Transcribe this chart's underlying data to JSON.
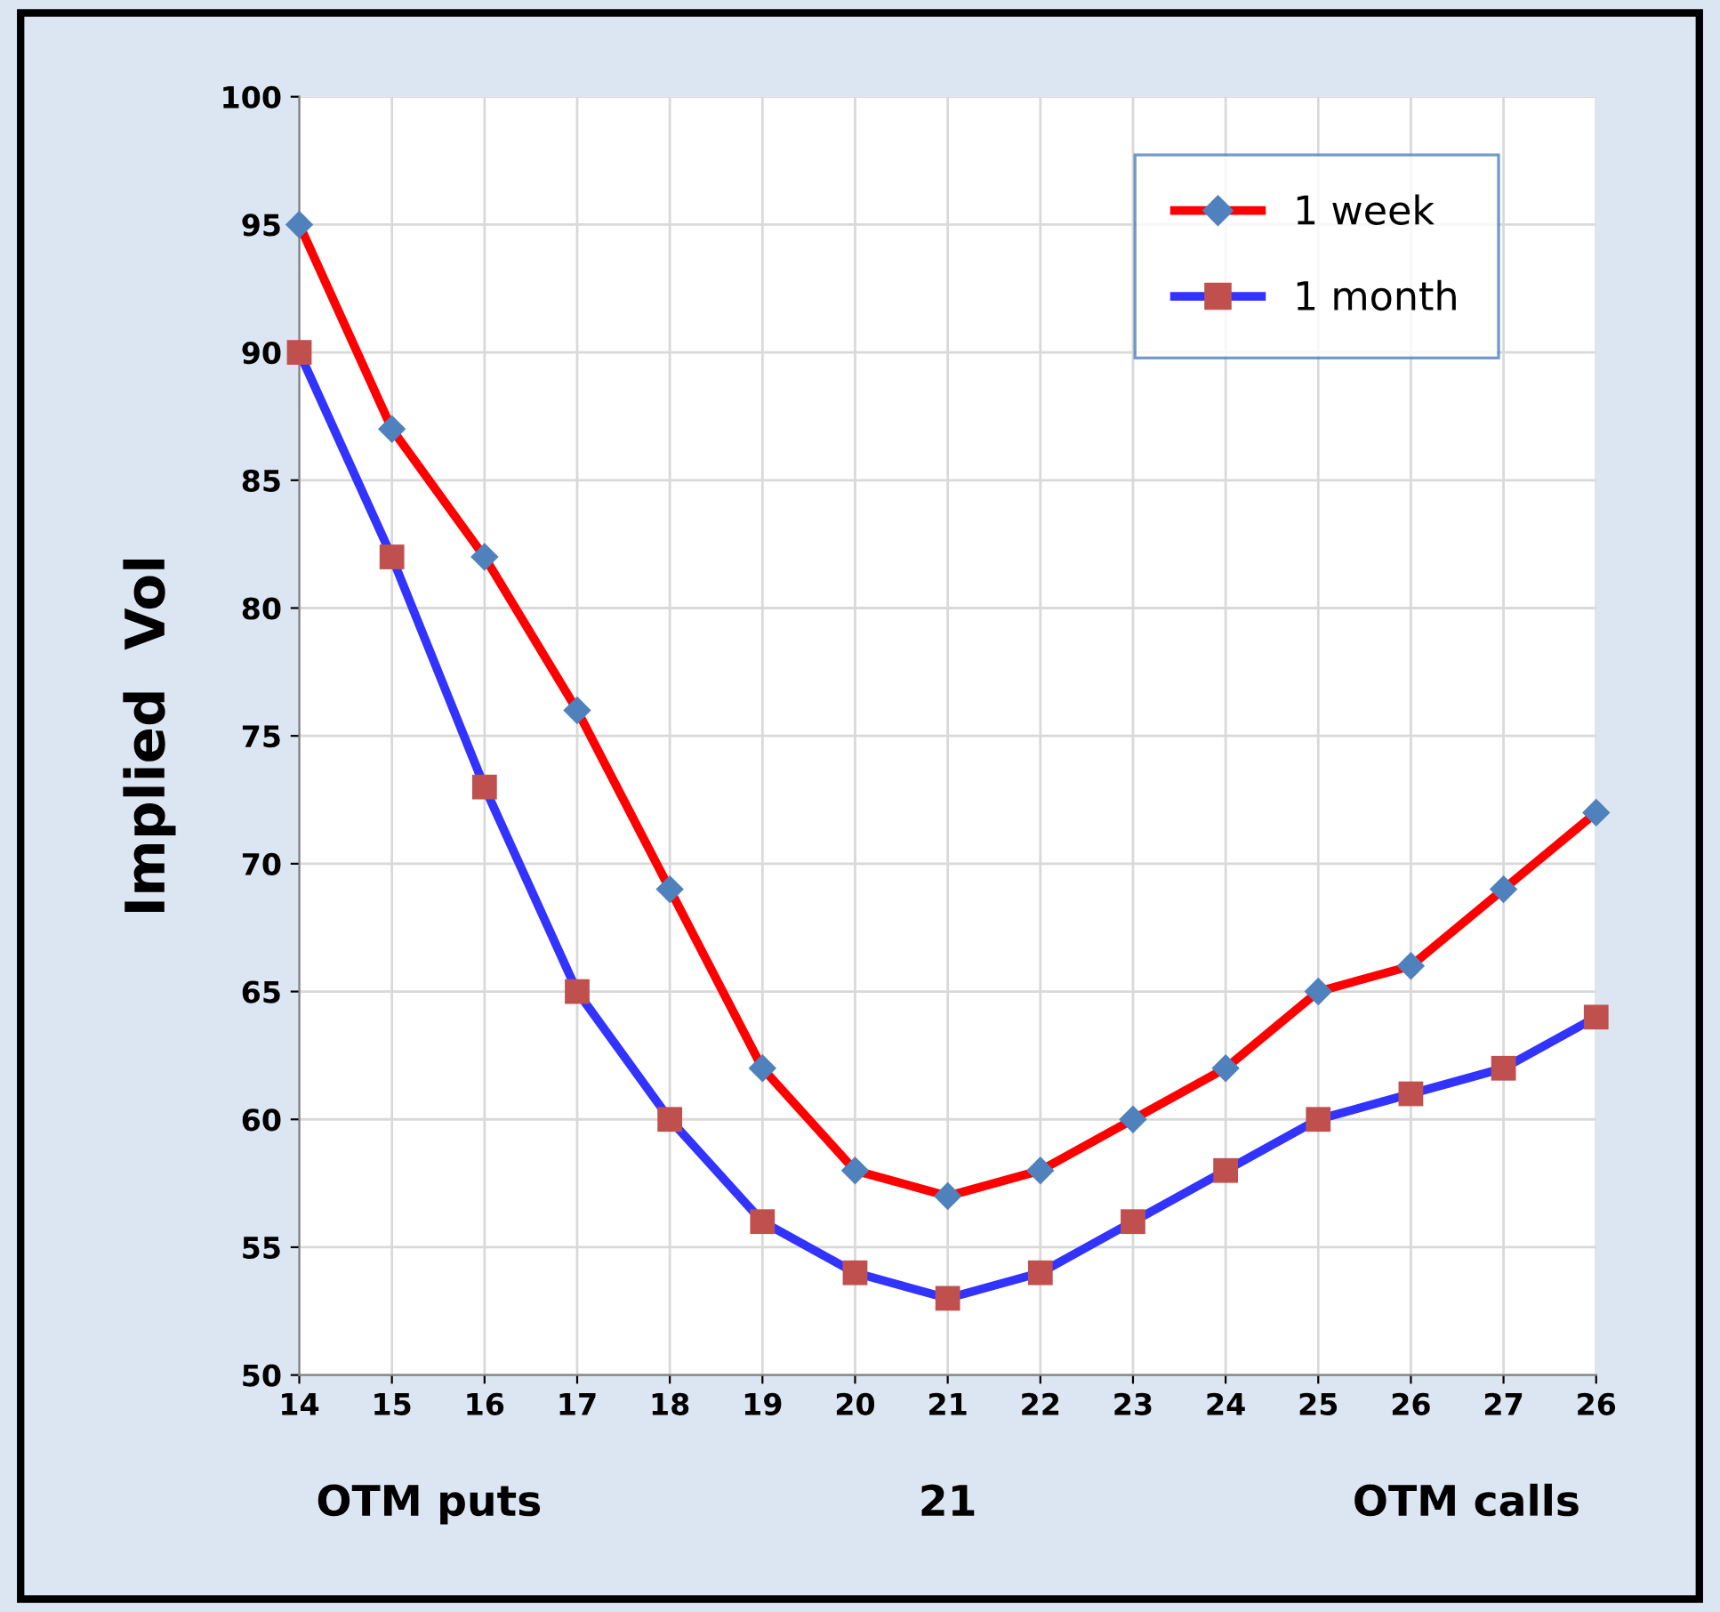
{
  "chart_data": {
    "type": "line",
    "ylabel": "Implied  Vol",
    "categories": [
      "14",
      "15",
      "16",
      "17",
      "18",
      "19",
      "20",
      "21",
      "22",
      "23",
      "24",
      "25",
      "26",
      "27",
      "26"
    ],
    "series": [
      {
        "name": "1 week",
        "color": "#ff0000",
        "marker": "diamond",
        "colors": [
          "#4f81bd",
          "#4f81bd",
          "#4f81bd",
          "#4f81bd",
          "#4f81bd",
          "#4f81bd",
          "#4f81bd",
          "#4f81bd",
          "#4f81bd",
          "#4f81bd",
          "#4f81bd",
          "#4f81bd",
          "#4f81bd",
          "#4f81bd",
          "#4f81bd"
        ],
        "values": [
          95,
          87,
          82,
          76,
          69,
          62,
          58,
          57,
          58,
          60,
          62,
          65,
          66,
          69,
          72
        ]
      },
      {
        "name": "1 month",
        "color": "#3333ff",
        "marker": "square",
        "colors": [
          "#c0504d",
          "#c0504d",
          "#c0504d",
          "#c0504d",
          "#c0504d",
          "#c0504d",
          "#c0504d",
          "#c0504d",
          "#c0504d",
          "#c0504d",
          "#c0504d",
          "#c0504d",
          "#c0504d",
          "#c0504d",
          "#c0504d"
        ],
        "values": [
          90,
          82,
          73,
          65,
          60,
          56,
          54,
          53,
          54,
          56,
          58,
          60,
          61,
          62,
          64
        ]
      }
    ],
    "annotations": [
      "OTM puts",
      "21",
      "OTM calls"
    ],
    "ylim": [
      50,
      100
    ],
    "yticks": [
      50,
      55,
      60,
      65,
      70,
      75,
      80,
      85,
      90,
      95,
      100
    ],
    "grid": true,
    "legend": "top right",
    "line_style": "solid"
  }
}
